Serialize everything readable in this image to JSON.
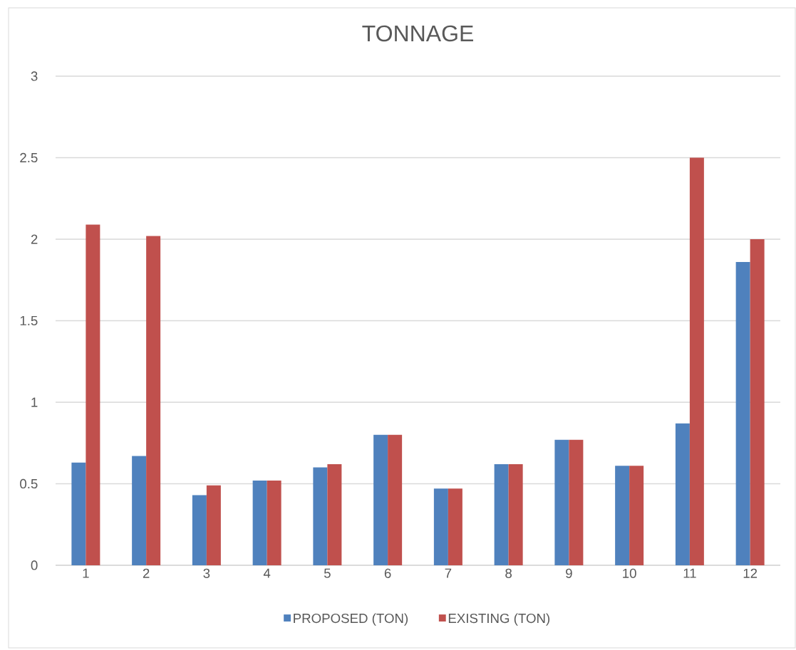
{
  "chart_data": {
    "type": "bar",
    "title": "TONNAGE",
    "categories": [
      "1",
      "2",
      "3",
      "4",
      "5",
      "6",
      "7",
      "8",
      "9",
      "10",
      "11",
      "12"
    ],
    "series": [
      {
        "name": "PROPOSED (TON)",
        "color": "#4f81bd",
        "values": [
          0.63,
          0.67,
          0.43,
          0.52,
          0.6,
          0.8,
          0.47,
          0.62,
          0.77,
          0.61,
          0.87,
          1.86
        ]
      },
      {
        "name": "EXISTING (TON)",
        "color": "#c0504d",
        "values": [
          2.09,
          2.02,
          0.49,
          0.52,
          0.62,
          0.8,
          0.47,
          0.62,
          0.77,
          0.61,
          2.5,
          2.0
        ]
      }
    ],
    "ylim": [
      0,
      3
    ],
    "yticks": [
      0,
      0.5,
      1,
      1.5,
      2,
      2.5,
      3
    ],
    "grid": "y",
    "legend": "bottom"
  }
}
